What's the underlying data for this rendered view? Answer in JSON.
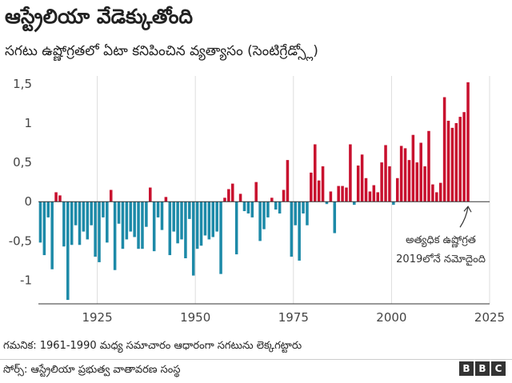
{
  "header": {
    "title": "ఆస్ట్రేలియా వేడెక్కుతోంది",
    "subtitle": "సగటు ఉష్ణోగ్రతలో ఏటా కనిపించిన వ్యత్యాసం (సెంటిగ్రేడ్స్లో)"
  },
  "footer": {
    "note": "గమనిక: 1961-1990 మధ్య సమాచారం ఆధారంగా సగటును లెక్కగట్టారు",
    "source": "సోర్స్: ఆస్ట్రేలియా ప్రభుత్వ వాతావరణ సంస్థ",
    "logo_letters": [
      "B",
      "B",
      "C"
    ]
  },
  "chart_data": {
    "type": "bar",
    "title": "ఆస్ట్రేలియా వేడెక్కుతోంది",
    "subtitle": "సగటు ఉష్ణోగ్రతలో ఏటా కనిపించిన వ్యత్యాసం (సెంటిగ్రేడ్స్లో)",
    "xlabel": "",
    "ylabel": "",
    "xlim": [
      1910,
      2025
    ],
    "ylim": [
      -1.3,
      1.6
    ],
    "xticks": [
      1925,
      1950,
      1975,
      2000,
      2025
    ],
    "yticks": [
      -1,
      -0.5,
      0,
      0.5,
      1,
      1.5
    ],
    "ytick_labels": [
      "-1",
      "-0,5",
      "0",
      "0,5",
      "1",
      "1,5"
    ],
    "grid": "vertical",
    "positive_color": "#c8102e",
    "negative_color": "#1d8aa8",
    "x": [
      1910,
      1911,
      1912,
      1913,
      1914,
      1915,
      1916,
      1917,
      1918,
      1919,
      1920,
      1921,
      1922,
      1923,
      1924,
      1925,
      1926,
      1927,
      1928,
      1929,
      1930,
      1931,
      1932,
      1933,
      1934,
      1935,
      1936,
      1937,
      1938,
      1939,
      1940,
      1941,
      1942,
      1943,
      1944,
      1945,
      1946,
      1947,
      1948,
      1949,
      1950,
      1951,
      1952,
      1953,
      1954,
      1955,
      1956,
      1957,
      1958,
      1959,
      1960,
      1961,
      1962,
      1963,
      1964,
      1965,
      1966,
      1967,
      1968,
      1969,
      1970,
      1971,
      1972,
      1973,
      1974,
      1975,
      1976,
      1977,
      1978,
      1979,
      1980,
      1981,
      1982,
      1983,
      1984,
      1985,
      1986,
      1987,
      1988,
      1989,
      1990,
      1991,
      1992,
      1993,
      1994,
      1995,
      1996,
      1997,
      1998,
      1999,
      2000,
      2001,
      2002,
      2003,
      2004,
      2005,
      2006,
      2007,
      2008,
      2009,
      2010,
      2011,
      2012,
      2013,
      2014,
      2015,
      2016,
      2017,
      2018,
      2019
    ],
    "values": [
      -0.52,
      -0.68,
      -0.2,
      -0.86,
      0.12,
      0.08,
      -0.57,
      -1.25,
      -0.55,
      -0.3,
      -0.55,
      -0.38,
      -0.48,
      -0.3,
      -0.7,
      -0.77,
      -0.2,
      -0.52,
      0.15,
      -0.87,
      -0.28,
      -0.6,
      -0.48,
      -0.38,
      -0.45,
      -0.6,
      -0.6,
      -0.32,
      0.18,
      -0.63,
      -0.2,
      -0.36,
      0.06,
      -0.68,
      -0.38,
      -0.53,
      -0.48,
      -0.72,
      -0.22,
      -0.94,
      -0.6,
      -0.56,
      -0.43,
      -0.48,
      -0.45,
      -0.38,
      -0.92,
      0.05,
      0.16,
      0.23,
      -0.67,
      0.1,
      -0.12,
      -0.15,
      -0.2,
      0.25,
      -0.5,
      -0.35,
      -0.2,
      0.05,
      -0.1,
      -0.15,
      0.15,
      0.53,
      -0.7,
      -0.3,
      -0.75,
      -0.15,
      -0.3,
      0.37,
      0.73,
      0.27,
      0.45,
      -0.03,
      0.13,
      -0.4,
      0.2,
      0.2,
      0.18,
      0.73,
      -0.04,
      0.46,
      0.6,
      0.3,
      0.13,
      0.21,
      0.12,
      0.5,
      0.72,
      0.45,
      -0.04,
      0.3,
      0.71,
      0.68,
      0.53,
      0.85,
      0.5,
      0.75,
      0.45,
      0.9,
      0.22,
      0.12,
      0.24,
      1.33,
      1.03,
      0.94,
      1.0,
      1.08,
      1.14,
      1.52
    ]
  },
  "annotation": {
    "line1": "అత్యధిక ఉష్ణోగ్రత",
    "line2": "2019లోనే నమోదైంది",
    "year": 2019,
    "value": 1.52
  }
}
